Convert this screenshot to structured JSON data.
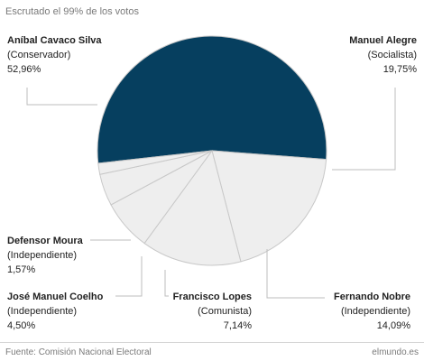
{
  "header": {
    "subtitle": "Escrutado el 99% de los votos"
  },
  "chart_data": {
    "type": "pie",
    "title": "",
    "slices": [
      {
        "label": "Aníbal Cavaco Silva",
        "party": "(Conservador)",
        "pct_text": "52,96%",
        "value": 52.96,
        "color": "#063f5f"
      },
      {
        "label": "Manuel Alegre",
        "party": "(Socialista)",
        "pct_text": "19,75%",
        "value": 19.75,
        "color": "#eeeeee"
      },
      {
        "label": "Fernando Nobre",
        "party": "(Independiente)",
        "pct_text": "14,09%",
        "value": 14.09,
        "color": "#eeeeee"
      },
      {
        "label": "Francisco Lopes",
        "party": "(Comunista)",
        "pct_text": "7,14%",
        "value": 7.14,
        "color": "#eeeeee"
      },
      {
        "label": "José Manuel Coelho",
        "party": "(Independiente)",
        "pct_text": "4,50%",
        "value": 4.5,
        "color": "#eeeeee"
      },
      {
        "label": "Defensor Moura",
        "party": "(Independiente)",
        "pct_text": "1,57%",
        "value": 1.57,
        "color": "#eeeeee"
      }
    ],
    "slice_stroke": "#c8c8c8",
    "leader_color": "#bdbdbd"
  },
  "footer": {
    "source": "Fuente: Comisión Nacional Electoral",
    "credit": "elmundo.es"
  }
}
